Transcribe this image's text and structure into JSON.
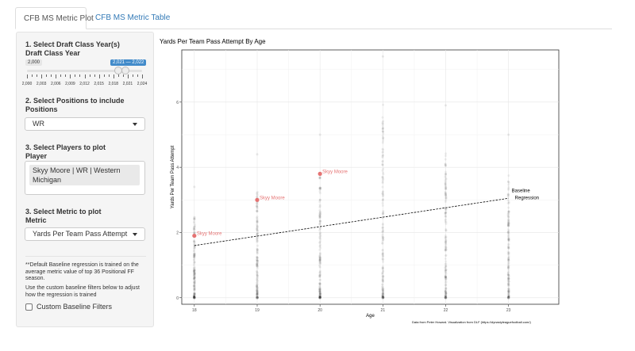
{
  "tabs": [
    {
      "label": "CFB MS Metric Plot",
      "active": true
    },
    {
      "label": "CFB MS Metric Table",
      "active": false
    }
  ],
  "sidebar": {
    "year_heading": "1. Select Draft Class Year(s)",
    "year_label": "Draft Class Year",
    "slider": {
      "min_value_label": "2,000",
      "range_label": "2,021 — 2,022",
      "min": 2000,
      "max": 2024,
      "selected_range": [
        2021,
        2022
      ],
      "tick_labels": [
        "2,000",
        "2,003",
        "2,006",
        "2,009",
        "2,012",
        "2,015",
        "2,018",
        "2,021",
        "2,024"
      ]
    },
    "positions_heading": "2. Select Positions to include",
    "positions_label": "Positions",
    "positions_value": "WR",
    "players_heading": "3. Select Players to plot",
    "players_label": "Player",
    "player_selected": "Skyy Moore | WR | Western Michigan",
    "metric_heading": "3. Select Metric to plot",
    "metric_label": "Metric",
    "metric_value": "Yards Per Team Pass Attempt",
    "note_1": "**Default Baseline regression is trained on the average metric value of top 36 Positional FF season.",
    "note_2": "Use the custom baseline filters below to adjust how the regression is trained",
    "custom_filters_label": "Custom Baseline Filters",
    "custom_filters_checked": false
  },
  "plot": {
    "title": "Yards Per Team Pass Attempt By Age",
    "caption": "Data from Peter Howard. Visualization from DLF (https://dynastyleaguefootball.com/)",
    "highlight_color": "#e57373"
  },
  "chart_data": {
    "type": "scatter",
    "title": "Yards Per Team Pass Attempt By Age",
    "xlabel": "Age",
    "ylabel": "Yards Per Team Pass Attempt",
    "x_ticks": [
      18,
      19,
      20,
      21,
      22,
      23
    ],
    "y_ticks": [
      0,
      2,
      4,
      6
    ],
    "xlim": [
      17.8,
      23.8
    ],
    "ylim": [
      -0.2,
      7.6
    ],
    "grid": true,
    "legend": "none",
    "background_points": {
      "18": {
        "min": 0,
        "max": 3.4
      },
      "19": {
        "min": 0,
        "max": 4.4
      },
      "20": {
        "min": 0,
        "max": 5.0
      },
      "21": {
        "min": 0,
        "max": 7.4
      },
      "22": {
        "min": 0,
        "max": 5.9
      },
      "23": {
        "min": 0,
        "max": 5.0
      }
    },
    "highlighted_series": {
      "name": "Skyy Moore",
      "points": [
        {
          "x": 18,
          "y": 1.9,
          "label": "Skyy Moore"
        },
        {
          "x": 19,
          "y": 3.0,
          "label": "Skyy Moore"
        },
        {
          "x": 20,
          "y": 3.8,
          "label": "Skyy Moore"
        }
      ]
    },
    "regression": {
      "name": "Baseline Regression",
      "x": [
        18,
        23
      ],
      "y": [
        1.6,
        3.05
      ],
      "label_lines": [
        "Baseline",
        "Regression"
      ]
    }
  }
}
